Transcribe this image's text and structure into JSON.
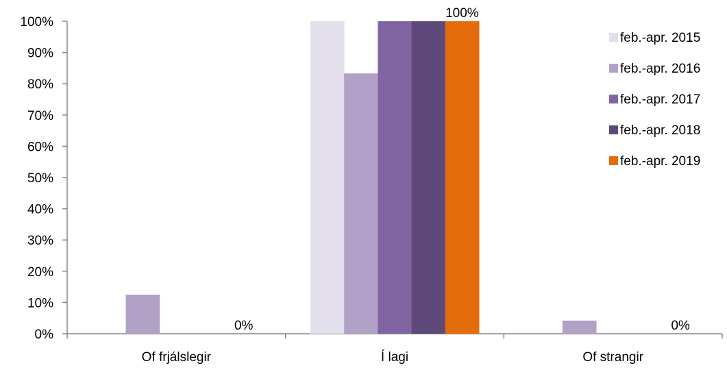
{
  "chart_data": {
    "type": "bar",
    "title": "",
    "xlabel": "",
    "ylabel": "",
    "ylim": [
      0,
      100
    ],
    "y_ticks": [
      "0%",
      "10%",
      "20%",
      "30%",
      "40%",
      "50%",
      "60%",
      "70%",
      "80%",
      "90%",
      "100%"
    ],
    "categories": [
      "Of frjálslegir",
      "Í lagi",
      "Of strangir"
    ],
    "series": [
      {
        "name": "feb.-apr. 2015",
        "color": "#e4dfec",
        "values": [
          0,
          100,
          0
        ]
      },
      {
        "name": "feb.-apr. 2016",
        "color": "#b2a1c7",
        "values": [
          12.5,
          83.3,
          4.2
        ]
      },
      {
        "name": "feb.-apr. 2017",
        "color": "#8064a2",
        "values": [
          0,
          100,
          0
        ]
      },
      {
        "name": "feb.-apr. 2018",
        "color": "#5f497a",
        "values": [
          0,
          100,
          0
        ]
      },
      {
        "name": "feb.-apr. 2019",
        "color": "#e46c0a",
        "values": [
          0,
          100,
          0
        ]
      }
    ],
    "data_labels": [
      {
        "series": 4,
        "category": 0,
        "text": "0%"
      },
      {
        "series": 4,
        "category": 1,
        "text": "100%"
      },
      {
        "series": 4,
        "category": 2,
        "text": "0%"
      }
    ],
    "legend_position": "right",
    "grid": false
  }
}
